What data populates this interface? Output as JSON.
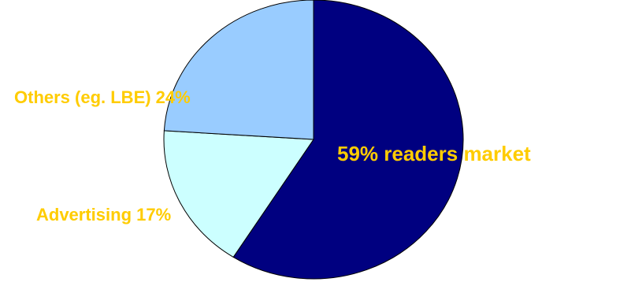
{
  "chart_data": {
    "type": "pie",
    "start_angle_deg": 0,
    "direction": "clockwise",
    "label_color": "#FFCC00",
    "slices": [
      {
        "label": "59% readers market",
        "value": 59,
        "color": "#000080"
      },
      {
        "label": "Advertising 17%",
        "value": 17,
        "color": "#CCFFFF"
      },
      {
        "label": "Others (eg. LBE) 24%",
        "value": 24,
        "color": "#99CCFF"
      }
    ]
  }
}
